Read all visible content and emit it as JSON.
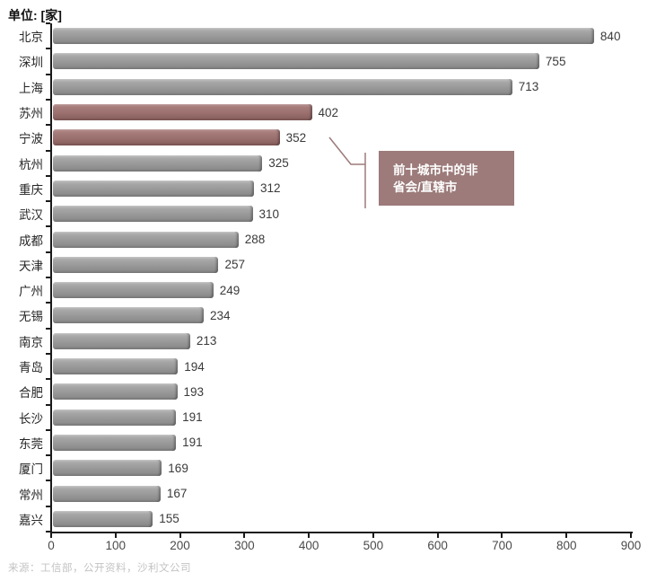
{
  "title": "单位: [家]",
  "chart_data": {
    "type": "bar",
    "orientation": "horizontal",
    "title": "单位: [家]",
    "categories": [
      "北京",
      "深圳",
      "上海",
      "苏州",
      "宁波",
      "杭州",
      "重庆",
      "武汉",
      "成都",
      "天津",
      "广州",
      "无锡",
      "南京",
      "青岛",
      "合肥",
      "长沙",
      "东莞",
      "厦门",
      "常州",
      "嘉兴"
    ],
    "values": [
      840,
      755,
      713,
      402,
      352,
      325,
      312,
      310,
      288,
      257,
      249,
      234,
      213,
      194,
      193,
      191,
      191,
      169,
      167,
      155
    ],
    "highlighted_categories": [
      "苏州",
      "宁波"
    ],
    "xlim": [
      0,
      900
    ],
    "x_ticks": [
      0,
      100,
      200,
      300,
      400,
      500,
      600,
      700,
      800,
      900
    ],
    "grid": false,
    "legend": null,
    "annotation": "前十城市中的非省会/直辖市",
    "annotation_target": "宁波"
  },
  "annotation": {
    "line1": "前十城市中的非",
    "line2": "省会/直辖市"
  },
  "source": "来源：工信部，公开资料，沙利文公司",
  "colors": {
    "bar_gray": "#989898",
    "bar_highlight": "#9b706e",
    "callout_bg": "#9c7b7a",
    "axis": "#1a1a1a",
    "value_text": "#3a3a3a",
    "category_text": "#262626",
    "tick_text": "#4a4a4a",
    "source_text": "#c3c3c3"
  }
}
